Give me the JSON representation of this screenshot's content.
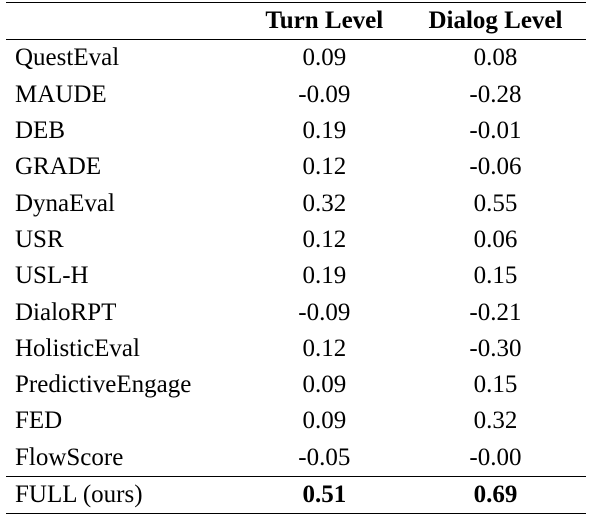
{
  "table": {
    "headers": {
      "metric": "",
      "turn": "Turn Level",
      "dialog": "Dialog Level"
    },
    "rows": [
      {
        "metric": "QuestEval",
        "turn": "0.09",
        "dialog": "0.08"
      },
      {
        "metric": "MAUDE",
        "turn": "-0.09",
        "dialog": "-0.28"
      },
      {
        "metric": "DEB",
        "turn": "0.19",
        "dialog": "-0.01"
      },
      {
        "metric": "GRADE",
        "turn": "0.12",
        "dialog": "-0.06"
      },
      {
        "metric": "DynaEval",
        "turn": "0.32",
        "dialog": "0.55"
      },
      {
        "metric": "USR",
        "turn": "0.12",
        "dialog": "0.06"
      },
      {
        "metric": "USL-H",
        "turn": "0.19",
        "dialog": "0.15"
      },
      {
        "metric": "DialoRPT",
        "turn": "-0.09",
        "dialog": "-0.21"
      },
      {
        "metric": "HolisticEval",
        "turn": "0.12",
        "dialog": "-0.30"
      },
      {
        "metric": "PredictiveEngage",
        "turn": "0.09",
        "dialog": "0.15"
      },
      {
        "metric": "FED",
        "turn": "0.09",
        "dialog": "0.32"
      },
      {
        "metric": "FlowScore",
        "turn": "-0.05",
        "dialog": "-0.00"
      }
    ],
    "final_row": {
      "metric": "FULL (ours)",
      "turn": "0.51",
      "dialog": "0.69"
    }
  }
}
